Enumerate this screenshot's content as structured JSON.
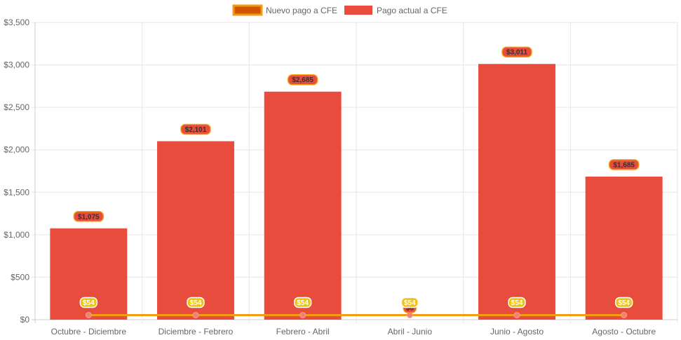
{
  "chart_data": {
    "type": "bar",
    "categories": [
      "Octubre - Diciembre",
      "Diciembre - Febrero",
      "Febrero - Abril",
      "Abril - Junio",
      "Junio - Agosto",
      "Agosto - Octubre"
    ],
    "series": [
      {
        "name": "Nuevo pago a CFE",
        "type": "line",
        "values": [
          54,
          54,
          54,
          54,
          54,
          54
        ],
        "labels": [
          "$54",
          "$54",
          "$54",
          "$54",
          "$54",
          "$54"
        ],
        "color": "#F39C12",
        "fill": "#D35400"
      },
      {
        "name": "Pago actual a CFE",
        "type": "bar",
        "values": [
          1075,
          2101,
          2685,
          0,
          3011,
          1685
        ],
        "labels": [
          "$1,075",
          "$2,101",
          "$2,685",
          "$0",
          "$3,011",
          "$1,685"
        ],
        "color": "#E74C3C"
      }
    ],
    "ylim": [
      0,
      3500
    ],
    "yticks": [
      0,
      500,
      1000,
      1500,
      2000,
      2500,
      3000,
      3500
    ],
    "ytick_labels": [
      "$0",
      "$500",
      "$1,000",
      "$1,500",
      "$2,000",
      "$2,500",
      "$3,000",
      "$3,500"
    ],
    "legend_position": "top",
    "grid": true
  }
}
